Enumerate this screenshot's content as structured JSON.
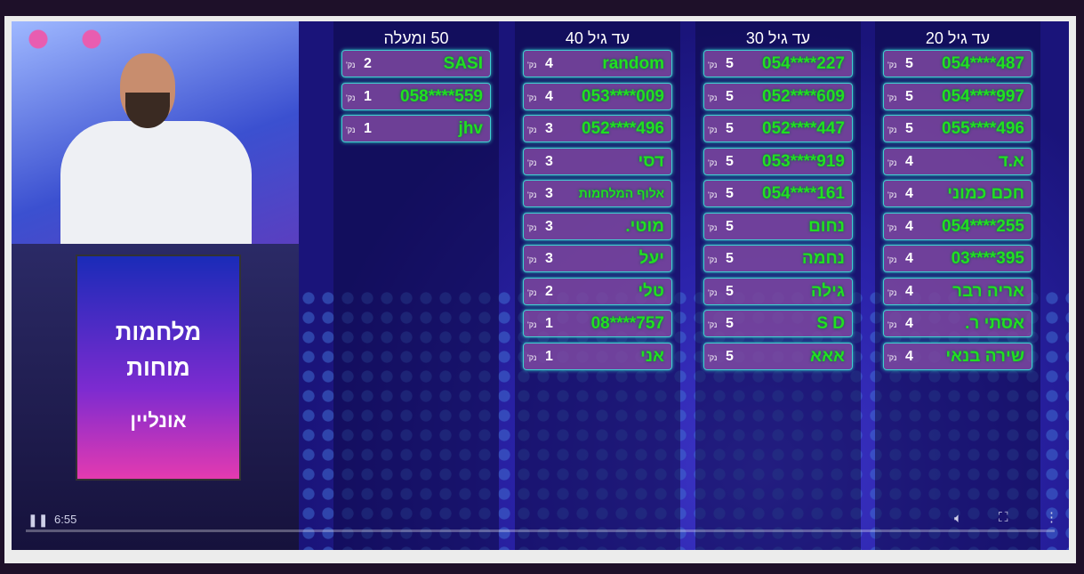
{
  "player": {
    "time": "6:55",
    "icons": {
      "play_pause": "pause-icon",
      "volume": "volume-icon",
      "fullscreen": "fullscreen-icon",
      "more": "more-vertical-icon"
    }
  },
  "video_logo": {
    "line1": "מלחמות",
    "line2": "מוחות",
    "line3": "אונליין"
  },
  "points_label": "נק'",
  "columns": [
    {
      "title": "50 ומעלה",
      "rows": [
        {
          "name": "SASI",
          "score": "2"
        },
        {
          "name": "559****058",
          "score": "1"
        },
        {
          "name": "jhv",
          "score": "1"
        }
      ]
    },
    {
      "title": "עד גיל 40",
      "rows": [
        {
          "name": "random",
          "score": "4"
        },
        {
          "name": "009****053",
          "score": "4"
        },
        {
          "name": "496****052",
          "score": "3"
        },
        {
          "name": "דסי",
          "score": "3"
        },
        {
          "name": "אלוף המלחמות",
          "score": "3",
          "small": true
        },
        {
          "name": "מוטי.",
          "score": "3"
        },
        {
          "name": "יעל",
          "score": "3"
        },
        {
          "name": "טלי",
          "score": "2"
        },
        {
          "name": "757****08",
          "score": "1"
        },
        {
          "name": "אני",
          "score": "1"
        }
      ]
    },
    {
      "title": "עד גיל 30",
      "rows": [
        {
          "name": "227****054",
          "score": "5"
        },
        {
          "name": "609****052",
          "score": "5"
        },
        {
          "name": "447****052",
          "score": "5"
        },
        {
          "name": "919****053",
          "score": "5"
        },
        {
          "name": "161****054",
          "score": "5"
        },
        {
          "name": "נחום",
          "score": "5"
        },
        {
          "name": "נחמה",
          "score": "5"
        },
        {
          "name": "גילה",
          "score": "5"
        },
        {
          "name": "S D",
          "score": "5"
        },
        {
          "name": "אאא",
          "score": "5"
        }
      ]
    },
    {
      "title": "עד גיל 20",
      "rows": [
        {
          "name": "487****054",
          "score": "5"
        },
        {
          "name": "997****054",
          "score": "5"
        },
        {
          "name": "496****055",
          "score": "5"
        },
        {
          "name": "א.ד",
          "score": "4"
        },
        {
          "name": "חכם כמוני",
          "score": "4"
        },
        {
          "name": "255****054",
          "score": "4"
        },
        {
          "name": "395****03",
          "score": "4"
        },
        {
          "name": "אריה רבר",
          "score": "4"
        },
        {
          "name": "אסתי ר.",
          "score": "4"
        },
        {
          "name": "שירה בנאי",
          "score": "4"
        }
      ]
    }
  ]
}
